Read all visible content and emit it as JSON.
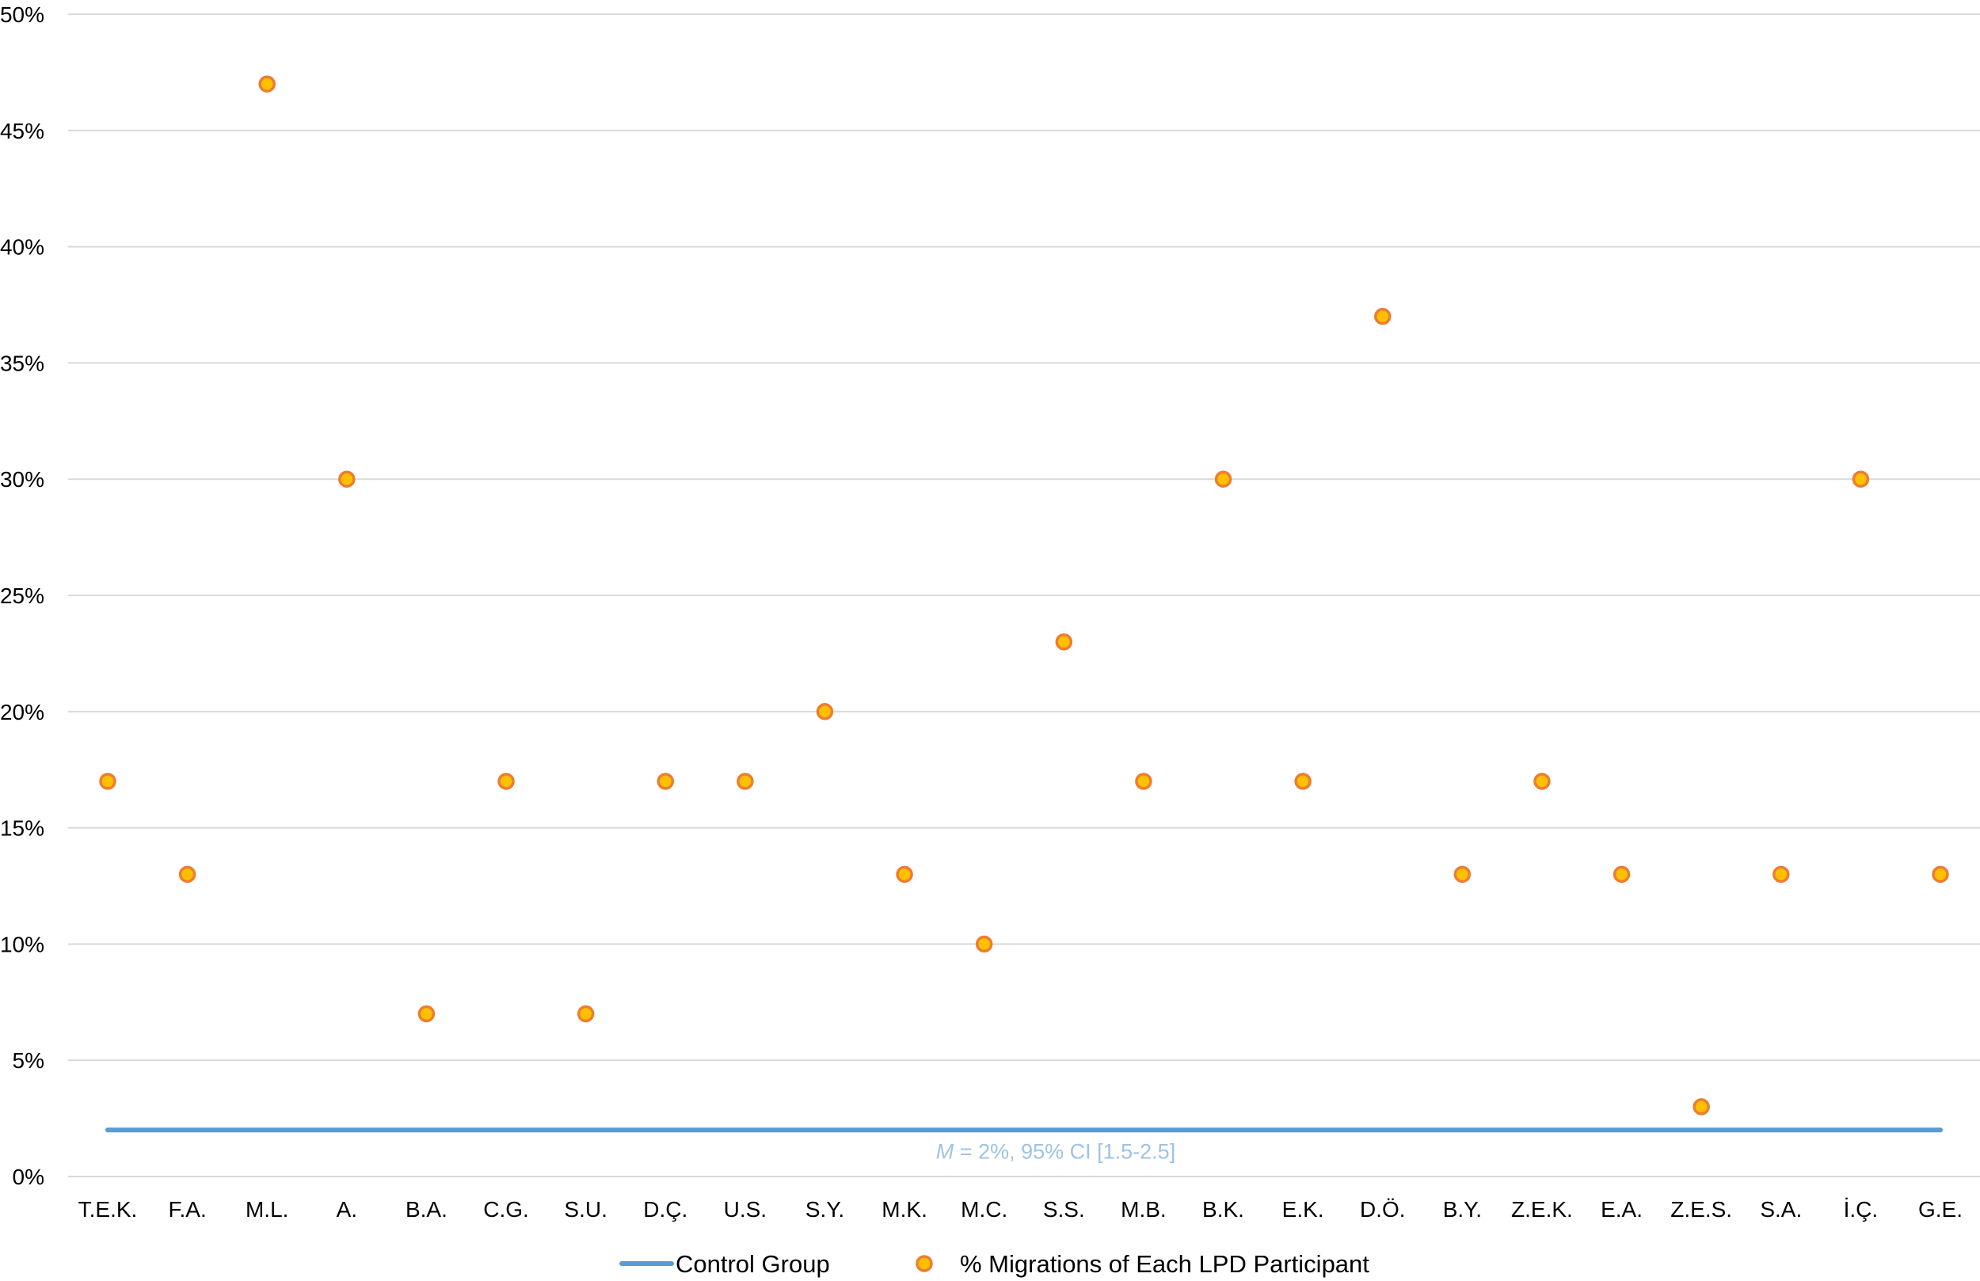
{
  "chart_data": {
    "type": "scatter",
    "categories": [
      "T.E.K.",
      "F.A.",
      "M.L.",
      "A.",
      "B.A.",
      "C.G.",
      "S.U.",
      "D.Ç.",
      "U.S.",
      "S.Y.",
      "M.K.",
      "M.C.",
      "S.S.",
      "M.B.",
      "B.K.",
      "E.K.",
      "D.Ö.",
      "B.Y.",
      "Z.E.K.",
      "E.A.",
      "Z.E.S.",
      "S.A.",
      "İ.Ç.",
      "G.E."
    ],
    "series": [
      {
        "name": "% Migrations of Each LPD Participant",
        "type": "scatter",
        "values": [
          17,
          13,
          47,
          30,
          7,
          17,
          7,
          17,
          17,
          20,
          13,
          10,
          23,
          17,
          30,
          17,
          37,
          13,
          17,
          13,
          3,
          13,
          30,
          13
        ],
        "color": "#FFC000",
        "stroke": "#ED7D31"
      },
      {
        "name": "Control Group",
        "type": "line",
        "value": 2,
        "color": "#5B9BD5"
      }
    ],
    "annotation": {
      "italic_part": "M",
      "rest": " = 2%,   95% CI [1.5-2.5]",
      "color": "#9DC3E6"
    },
    "yticks": [
      "0%",
      "5%",
      "10%",
      "15%",
      "20%",
      "25%",
      "30%",
      "35%",
      "40%",
      "45%",
      "50%"
    ],
    "ylim": [
      0,
      50
    ],
    "grid": true,
    "legend": "bottom",
    "xlabel": "",
    "ylabel": ""
  }
}
